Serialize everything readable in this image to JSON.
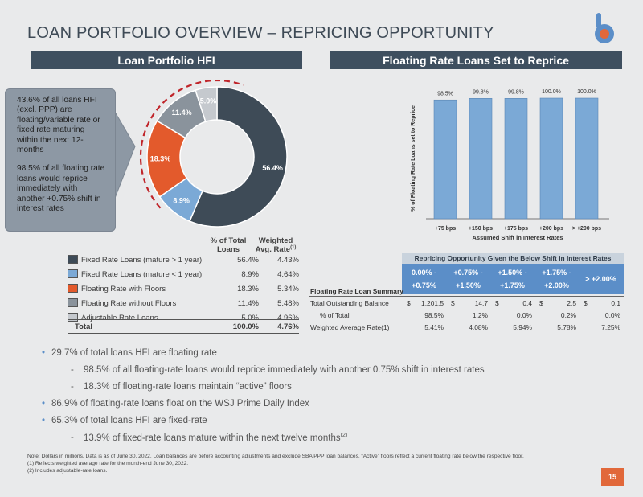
{
  "title": "LOAN PORTFOLIO OVERVIEW – REPRICING OPPORTUNITY",
  "colors": {
    "fixed_gt1": "#3e4b57",
    "fixed_lt1": "#7ba9d6",
    "floors": "#e35a2c",
    "no_floors": "#8a939c",
    "adjustable": "#c5c9ce",
    "bars": "#7ba9d6",
    "accent": "#e1683a"
  },
  "left_header": "Loan Portfolio HFI",
  "right_header": "Floating Rate Loans Set to Reprice",
  "callout": {
    "p1": "43.6% of all loans HFI (excl. PPP) are floating/variable rate or fixed rate maturing within the next 12-months",
    "p2": "98.5% of all floating rate loans would reprice immediately with another +0.75% shift in interest rates"
  },
  "donut": {
    "labels": [
      "56.4%",
      "8.9%",
      "18.3%",
      "11.4%",
      "5.0%"
    ],
    "values": [
      56.4,
      8.9,
      18.3,
      11.4,
      5.0
    ]
  },
  "legend": {
    "col1": "% of Total Loans",
    "col1a": "% of Total",
    "col1b": "Loans",
    "col2a": "Weighted",
    "col2b": "Avg. Rate",
    "col2_sup": "(1)",
    "rows": [
      {
        "name": "Fixed Rate Loans (mature > 1 year)",
        "pct": "56.4%",
        "rate": "4.43%"
      },
      {
        "name": "Fixed Rate Loans (mature < 1 year)",
        "pct": "8.9%",
        "rate": "4.64%"
      },
      {
        "name": "Floating Rate with Floors",
        "pct": "18.3%",
        "rate": "5.34%"
      },
      {
        "name": "Floating Rate without Floors",
        "pct": "11.4%",
        "rate": "5.48%"
      },
      {
        "name": "Adjustable Rate Loans",
        "pct": "5.0%",
        "rate": "4.96%"
      }
    ],
    "total": {
      "name": "Total",
      "pct": "100.0%",
      "rate": "4.76%"
    }
  },
  "chart_data": {
    "type": "bar",
    "categories": [
      "+75 bps",
      "+150 bps",
      "+175 bps",
      "+200 bps",
      "> +200 bps"
    ],
    "values": [
      98.5,
      99.8,
      99.8,
      100.0,
      100.0
    ],
    "data_labels": [
      "98.5%",
      "99.8%",
      "99.8%",
      "100.0%",
      "100.0%"
    ],
    "xlabel": "Assumed Shift in Interest Rates",
    "ylabel": "% of Floating Rate Loans set to Reprice",
    "ylim": [
      0,
      100
    ]
  },
  "repricing": {
    "header": "Repricing Opportunity Given the Below Shift in Interest Rates",
    "cols": [
      [
        "0.00% -",
        "+0.75%"
      ],
      [
        "+0.75% -",
        "+1.50%"
      ],
      [
        "+1.50% -",
        "+1.75%"
      ],
      [
        "+1.75% -",
        "+2.00%"
      ],
      [
        "> +2.00%"
      ]
    ],
    "section": "Floating Rate Loan Summary",
    "rows": [
      {
        "label": "Total Outstanding Balance",
        "dollar": true,
        "vals": [
          "1,201.5",
          "14.7",
          "0.4",
          "2.5",
          "0.1"
        ]
      },
      {
        "label": "% of Total",
        "dollar": false,
        "vals": [
          "98.5%",
          "1.2%",
          "0.0%",
          "0.2%",
          "0.0%"
        ]
      },
      {
        "label": "Weighted Average Rate(1)",
        "dollar": false,
        "vals": [
          "5.41%",
          "4.08%",
          "5.94%",
          "5.78%",
          "7.25%"
        ]
      }
    ],
    "dollar_sign": "$"
  },
  "bullets": [
    {
      "level": 1,
      "text": "29.7% of total loans HFI are floating rate"
    },
    {
      "level": 2,
      "text": "98.5% of all floating-rate loans would reprice immediately with another 0.75% shift in interest rates"
    },
    {
      "level": 2,
      "text": "18.3% of floating-rate loans maintain “active” floors"
    },
    {
      "level": 1,
      "text": "86.9% of floating-rate loans float on the WSJ Prime Daily Index"
    },
    {
      "level": 1,
      "text": "65.3% of total loans HFI are fixed-rate"
    },
    {
      "level": 2,
      "text": "13.9% of fixed-rate loans mature within the next twelve months",
      "sup": "(2)"
    }
  ],
  "notes": {
    "main": "Note: Dollars in millions. Data is as of June 30, 2022. Loan balances are before accounting adjustments and exclude SBA PPP loan balances. “Active” floors reflect a current floating rate below the respective floor.",
    "n1": "(1)     Reflects weighted average rate for the month-end June 30, 2022.",
    "n2": "(2)     Includes adjustable-rate loans."
  },
  "page_number": "15"
}
